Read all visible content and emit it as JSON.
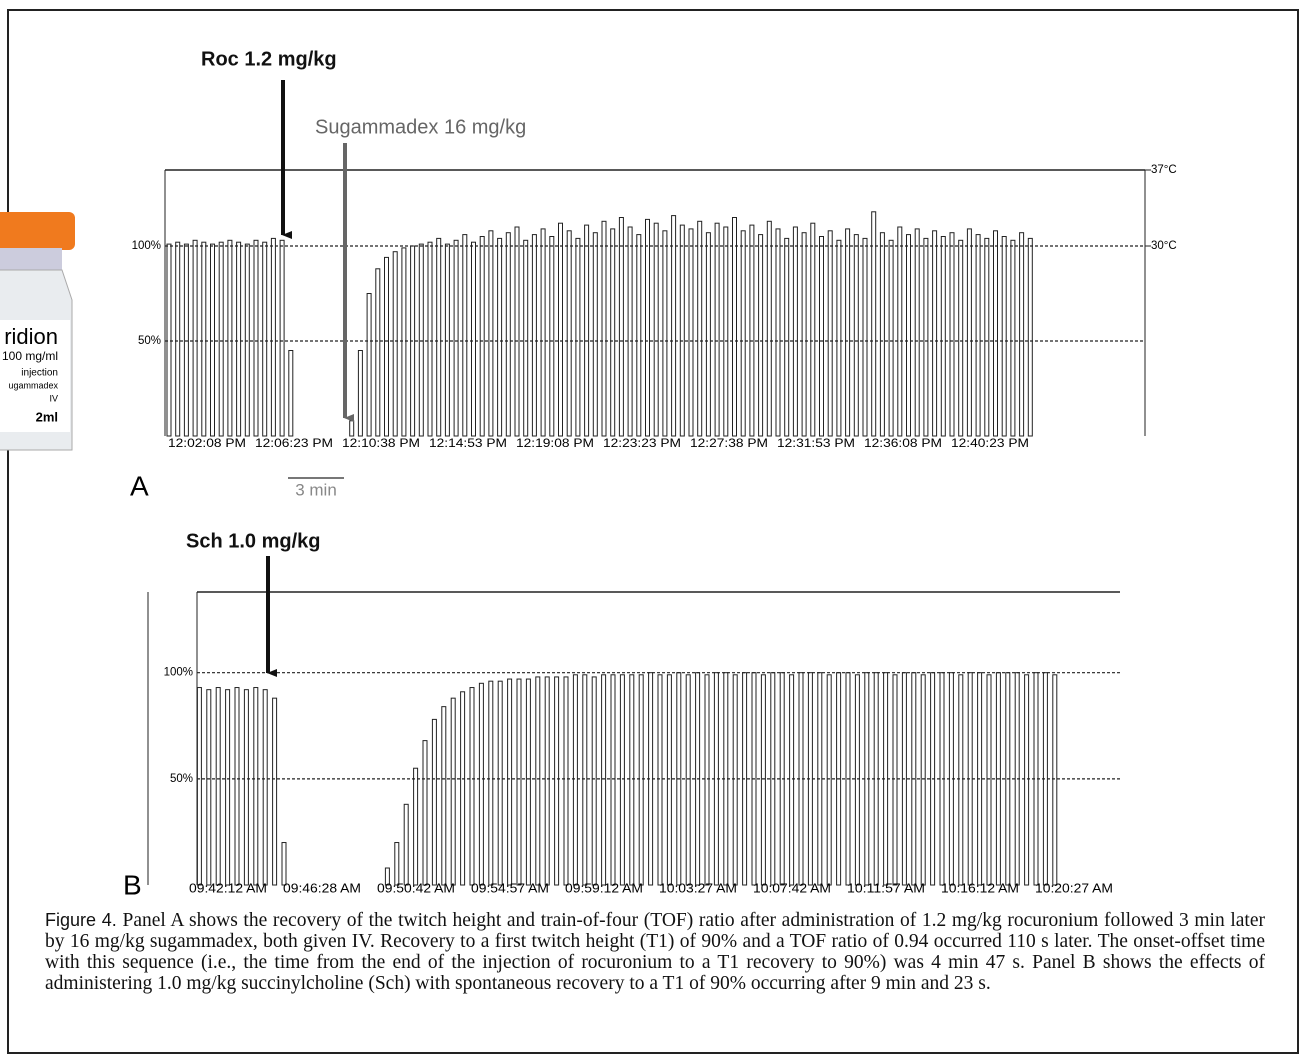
{
  "chart_data": [
    {
      "type": "bar",
      "panel_label": "A",
      "annotations": [
        "Roc 1.2 mg/kg",
        "Sugammadex 16 mg/kg"
      ],
      "scale_label": "3 min",
      "color": "#222222",
      "categories": [
        "12:02:08 PM",
        null,
        null,
        null,
        null,
        null,
        null,
        null,
        null,
        null,
        "12:06:23 PM",
        null,
        null,
        null,
        null,
        null,
        null,
        null,
        null,
        null,
        "12:10:38 PM",
        null,
        null,
        null,
        null,
        null,
        null,
        null,
        null,
        null,
        "12:14:53 PM",
        null,
        null,
        null,
        null,
        null,
        null,
        null,
        null,
        null,
        "12:19:08 PM",
        null,
        null,
        null,
        null,
        null,
        null,
        null,
        null,
        null,
        "12:23:23 PM",
        null,
        null,
        null,
        null,
        null,
        null,
        null,
        null,
        null,
        "12:27:38 PM",
        null,
        null,
        null,
        null,
        null,
        null,
        null,
        null,
        null,
        "12:31:53 PM",
        null,
        null,
        null,
        null,
        null,
        null,
        null,
        null,
        null,
        "12:36:08 PM",
        null,
        null,
        null,
        null,
        null,
        null,
        null,
        null,
        null,
        "12:40:23 PM",
        null,
        null,
        null,
        null,
        null,
        null,
        null,
        null,
        null
      ],
      "values": [
        101,
        102,
        101,
        103,
        102,
        101,
        102,
        103,
        102,
        101,
        103,
        102,
        104,
        103,
        45,
        0,
        0,
        0,
        0,
        0,
        0,
        8,
        45,
        75,
        88,
        94,
        97,
        99,
        100,
        101,
        102,
        104,
        101,
        103,
        106,
        102,
        105,
        108,
        104,
        107,
        110,
        103,
        106,
        109,
        105,
        112,
        108,
        104,
        111,
        107,
        113,
        109,
        115,
        110,
        106,
        114,
        112,
        108,
        116,
        111,
        109,
        113,
        107,
        112,
        110,
        115,
        108,
        111,
        106,
        113,
        109,
        104,
        110,
        107,
        112,
        105,
        108,
        103,
        109,
        106,
        104,
        118,
        107,
        103,
        110,
        106,
        109,
        104,
        108,
        105,
        107,
        103,
        109,
        106,
        104,
        108,
        105,
        103,
        107,
        104
      ],
      "ylim": [
        0,
        140
      ],
      "yticks": [
        {
          "value": 50,
          "label": "50%"
        },
        {
          "value": 100,
          "label": "100%"
        }
      ],
      "y2lim": [
        12.5,
        37
      ],
      "y2ticks": [
        {
          "value": 30,
          "label": "30°C"
        },
        {
          "value": 37,
          "label": "37°C"
        }
      ],
      "grid": true
    },
    {
      "type": "bar",
      "panel_label": "B",
      "annotations": [
        "Sch 1.0 mg/kg"
      ],
      "color": "#222222",
      "categories": [
        "09:42:12 AM",
        null,
        null,
        null,
        null,
        null,
        null,
        null,
        null,
        null,
        "09:46:28 AM",
        null,
        null,
        null,
        null,
        null,
        null,
        null,
        null,
        null,
        "09:50:42 AM",
        null,
        null,
        null,
        null,
        null,
        null,
        null,
        null,
        null,
        "09:54:57 AM",
        null,
        null,
        null,
        null,
        null,
        null,
        null,
        null,
        null,
        "09:59:12 AM",
        null,
        null,
        null,
        null,
        null,
        null,
        null,
        null,
        null,
        "10:03:27 AM",
        null,
        null,
        null,
        null,
        null,
        null,
        null,
        null,
        null,
        "10:07:42 AM",
        null,
        null,
        null,
        null,
        null,
        null,
        null,
        null,
        null,
        "10:11:57 AM",
        null,
        null,
        null,
        null,
        null,
        null,
        null,
        null,
        null,
        "10:16:12 AM",
        null,
        null,
        null,
        null,
        null,
        null,
        null,
        null,
        null,
        "10:20:27 AM",
        null,
        null
      ],
      "values": [
        null,
        93,
        92,
        93,
        92,
        93,
        92,
        93,
        92,
        88,
        20,
        0,
        0,
        0,
        0,
        0,
        0,
        0,
        0,
        0,
        0,
        8,
        20,
        38,
        55,
        68,
        78,
        84,
        88,
        91,
        93,
        95,
        96,
        96,
        97,
        97,
        97,
        98,
        98,
        98,
        98,
        99,
        99,
        98,
        99,
        99,
        99,
        99,
        99,
        100,
        99,
        99,
        100,
        99,
        100,
        99,
        100,
        100,
        99,
        100,
        100,
        99,
        100,
        100,
        99,
        100,
        100,
        100,
        99,
        100,
        100,
        99,
        100,
        100,
        100,
        99,
        100,
        100,
        99,
        100,
        100,
        100,
        99,
        100,
        100,
        99,
        100,
        100,
        100,
        99,
        100,
        100,
        99
      ],
      "ylim": [
        0,
        138
      ],
      "yticks": [
        {
          "value": 50,
          "label": "50%"
        },
        {
          "value": 100,
          "label": "100%"
        }
      ],
      "grid": true
    }
  ],
  "vial": {
    "name": "ridion",
    "strength": "100 mg/ml",
    "form": "injection",
    "generic": "ugammadex",
    "route": "IV",
    "volume": "2ml"
  },
  "caption": {
    "figure": "Figure 4.",
    "text": "Panel A shows the recovery of the twitch height and train-of-four (TOF) ratio after administration of 1.2 mg/kg rocuronium followed 3 min later by 16 mg/kg sugammadex, both given IV. Recovery to a first twitch height (T1) of 90% and a TOF ratio of 0.94 occurred 110 s later. The onset-offset time with this sequence (i.e., the time from the end of the injection of rocuronium to a T1 recovery to 90%) was 4 min 47 s. Panel B shows the effects of administering 1.0 mg/kg succinylcholine (Sch) with spontaneous recovery to a T1 of 90% occurring after 9 min and 23 s."
  }
}
